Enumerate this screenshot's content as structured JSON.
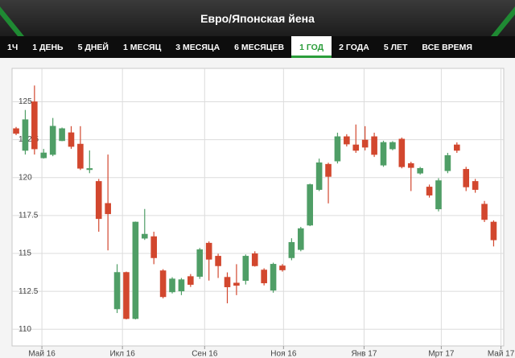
{
  "header": {
    "title": "Евро/Японская йена"
  },
  "tabs": {
    "items": [
      "1Ч",
      "1 ДЕНЬ",
      "5 ДНЕЙ",
      "1 МЕСЯЦ",
      "3 МЕСЯЦА",
      "6 МЕСЯЦЕВ",
      "1 ГОД",
      "2 ГОДА",
      "5 ЛЕТ",
      "ВСЕ ВРЕМЯ"
    ],
    "selected": 6
  },
  "chart_data": {
    "type": "candlestick",
    "up_color": "#4f9e66",
    "down_color": "#d2472e",
    "open": [
      123.23,
      121.79,
      125.0,
      121.3,
      121.52,
      122.43,
      122.96,
      122.21,
      120.55,
      119.75,
      118.3,
      111.34,
      113.75,
      110.7,
      116.0,
      116.11,
      113.86,
      112.46,
      112.52,
      113.48,
      113.48,
      115.68,
      114.82,
      113.43,
      113.05,
      113.21,
      114.98,
      113.91,
      112.57,
      114.18,
      114.71,
      115.25,
      116.86,
      119.21,
      120.88,
      121.09,
      122.7,
      122.16,
      122.48,
      122.7,
      120.82,
      121.89,
      122.54,
      120.93,
      120.29,
      119.38,
      117.93,
      120.45,
      122.16,
      120.55,
      119.75,
      118.25,
      117.07
    ],
    "high": [
      123.34,
      124.46,
      126.07,
      121.89,
      123.93,
      123.3,
      123.39,
      123.39,
      121.79,
      119.91,
      121.52,
      114.29,
      113.8,
      117.1,
      117.93,
      116.43,
      113.96,
      113.43,
      113.38,
      113.64,
      115.36,
      115.79,
      114.98,
      113.75,
      114.29,
      114.93,
      115.14,
      114.02,
      114.39,
      114.3,
      116.0,
      116.75,
      119.6,
      121.25,
      120.98,
      122.96,
      122.86,
      123.5,
      123.39,
      122.96,
      122.43,
      122.4,
      122.64,
      121.04,
      120.7,
      119.54,
      119.96,
      121.63,
      122.32,
      120.71,
      119.91,
      118.46,
      117.18
    ],
    "low": [
      122.8,
      121.52,
      121.52,
      121.25,
      121.41,
      122.4,
      121.89,
      120.5,
      120.29,
      116.43,
      115.2,
      111.07,
      110.65,
      110.65,
      115.89,
      114.29,
      112.04,
      112.36,
      112.25,
      112.79,
      113.32,
      113.21,
      113.38,
      111.71,
      112.25,
      112.95,
      114.13,
      112.89,
      112.41,
      113.8,
      114.55,
      115.14,
      116.8,
      119.11,
      118.3,
      120.93,
      122.05,
      121.63,
      121.79,
      121.36,
      120.71,
      121.8,
      120.61,
      119.11,
      120.2,
      118.68,
      117.77,
      120.29,
      121.63,
      119.11,
      119.0,
      117.07,
      115.46
    ],
    "close": [
      122.91,
      123.82,
      121.89,
      121.63,
      123.39,
      123.23,
      122.05,
      120.61,
      120.6,
      117.29,
      117.61,
      113.75,
      110.7,
      117.07,
      116.27,
      114.71,
      112.14,
      113.32,
      113.27,
      112.95,
      115.25,
      114.61,
      114.18,
      112.79,
      112.89,
      114.82,
      114.18,
      113.05,
      114.29,
      113.91,
      115.73,
      116.64,
      119.54,
      120.98,
      120.07,
      122.7,
      122.21,
      121.79,
      122.0,
      121.52,
      122.32,
      122.32,
      120.71,
      120.66,
      120.61,
      118.84,
      119.8,
      121.46,
      121.79,
      119.38,
      119.21,
      117.23,
      115.89
    ],
    "xlim": [
      -0.44,
      53.1
    ],
    "xticks": [
      {
        "value": 2.81,
        "label": "Май 16"
      },
      {
        "value": 11.58,
        "label": "Икл 16"
      },
      {
        "value": 20.53,
        "label": "Сен 16"
      },
      {
        "value": 29.12,
        "label": "Ноя 16"
      },
      {
        "value": 37.89,
        "label": "Янв 17"
      },
      {
        "value": 46.3,
        "label": "Мрт 17"
      },
      {
        "value": 52.8,
        "label": "Май 17"
      }
    ],
    "ylim": [
      108.9,
      127.2
    ],
    "yticks": [
      110,
      112.5,
      115,
      117.5,
      120,
      122.5,
      125
    ],
    "grid": true
  }
}
